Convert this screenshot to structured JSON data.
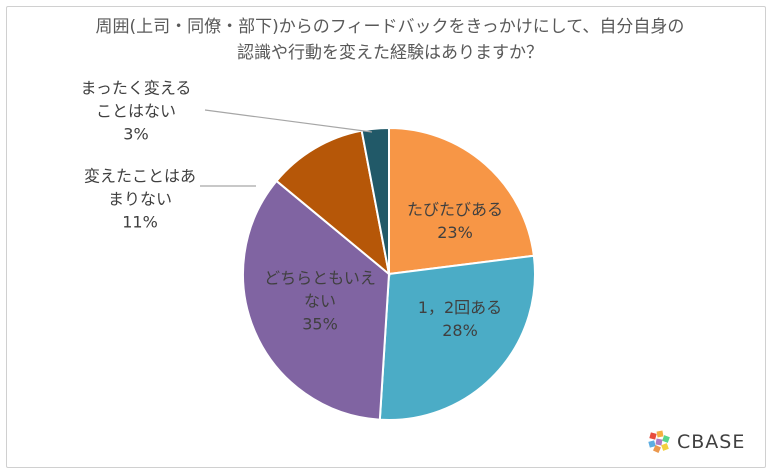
{
  "chart_data": {
    "type": "pie",
    "title": "周囲(上司・同僚・部下)からのフィードバックをきっかけにして、自分自身の認識や行動を変えた経験はありますか？",
    "slices": [
      {
        "label_lines": [
          "たびたびある"
        ],
        "value": 23,
        "value_label": "23%",
        "color": "#F79646"
      },
      {
        "label_lines": [
          "1，2回ある"
        ],
        "value": 28,
        "value_label": "28%",
        "color": "#4BACC6"
      },
      {
        "label_lines": [
          "どちらともいえ",
          "ない"
        ],
        "value": 35,
        "value_label": "35%",
        "color": "#8064A2"
      },
      {
        "label_lines": [
          "変えたことはあ",
          "まりない"
        ],
        "value": 11,
        "value_label": "11%",
        "color": "#B65708"
      },
      {
        "label_lines": [
          "まったく変える",
          "ことはない"
        ],
        "value": 3,
        "value_label": "3%",
        "color": "#215968"
      }
    ]
  },
  "brand": {
    "name": "CBASE"
  }
}
